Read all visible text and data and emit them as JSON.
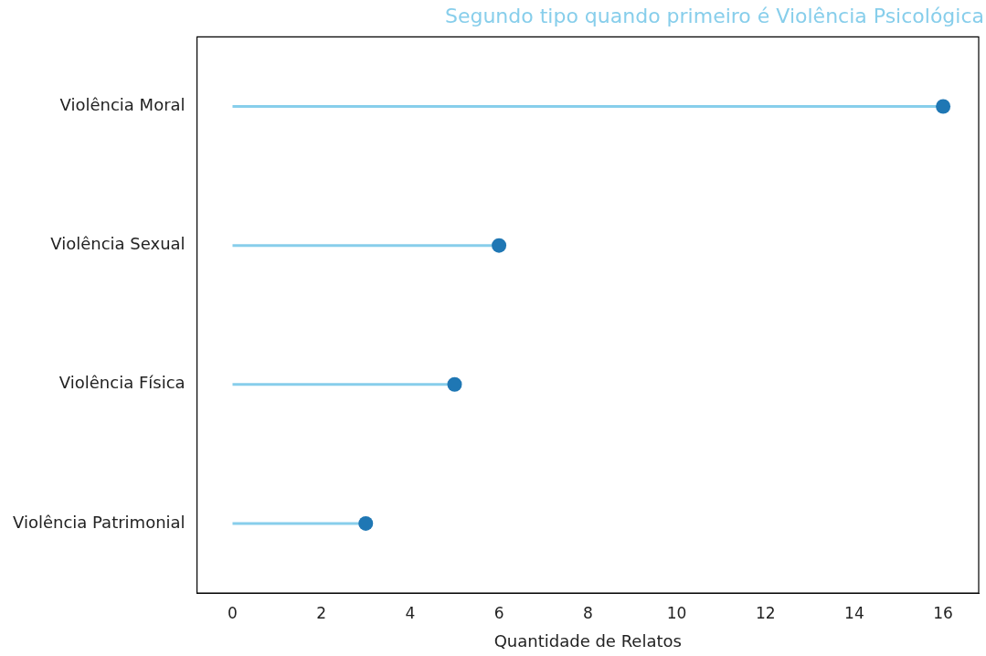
{
  "chart_data": {
    "type": "lollipop",
    "orientation": "horizontal",
    "title": "Segundo tipo quando primeiro é Violência Psicológica",
    "xlabel": "Quantidade de Relatos",
    "categories": [
      "Violência Moral",
      "Violência Sexual",
      "Violência Física",
      "Violência Patrimonial"
    ],
    "color": "#87ceeb",
    "series": [
      {
        "color": "#1f77b4",
        "values": [
          16,
          6,
          5,
          3
        ]
      }
    ],
    "marker": "circle",
    "grid": false,
    "legend": false,
    "xlim": [
      -0.8,
      16.8
    ],
    "xticks": [
      0,
      2,
      4,
      6,
      8,
      10,
      12,
      14,
      16
    ]
  }
}
